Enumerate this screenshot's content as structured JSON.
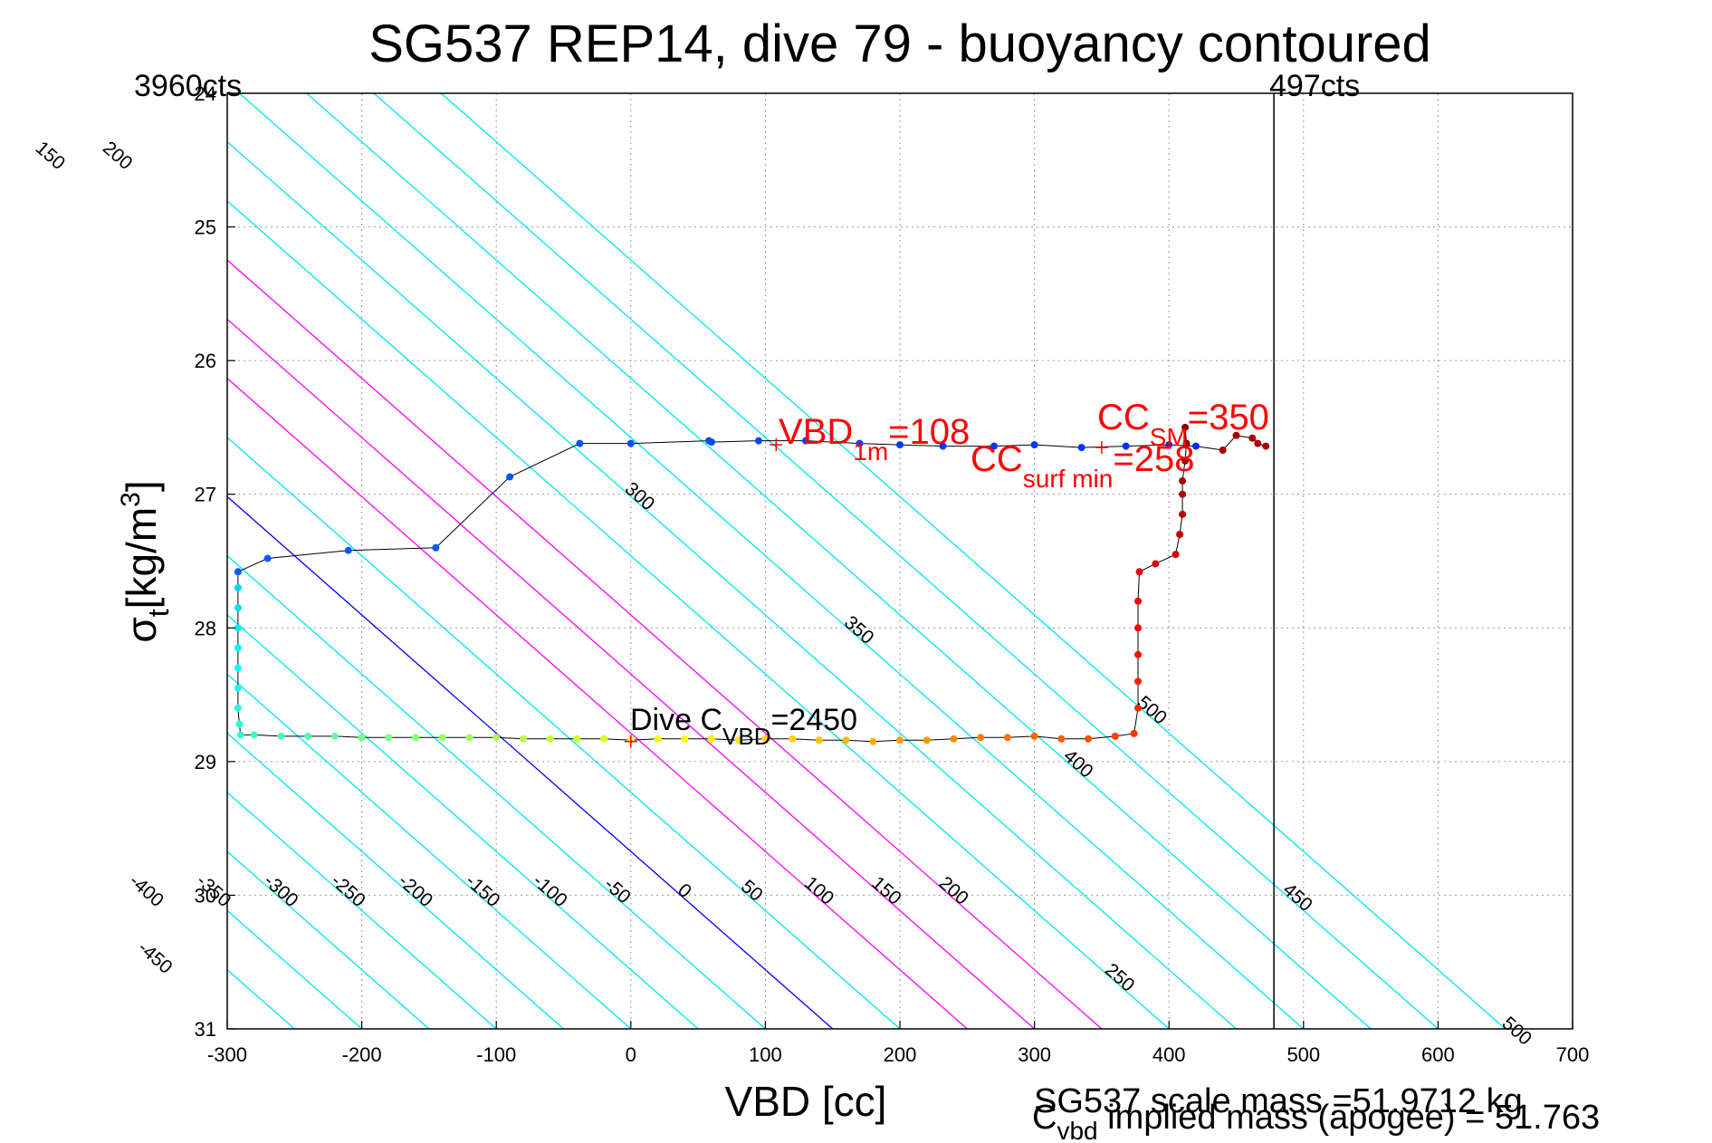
{
  "chart_data": {
    "type": "scatter",
    "title": "SG537 REP14, dive 79 - buoyancy contoured",
    "xlabel": "VBD [cc]",
    "ylabel_main": "σ",
    "ylabel_sub": "t",
    "ylabel_unit_pre": "[kg/m",
    "ylabel_unit_sup": "3",
    "ylabel_unit_post": "]",
    "xlim": [
      -300,
      700
    ],
    "ylim": [
      24,
      31
    ],
    "y_reversed": true,
    "xticks": [
      -300,
      -200,
      -100,
      0,
      100,
      200,
      300,
      400,
      500,
      600,
      700
    ],
    "yticks": [
      24,
      25,
      26,
      27,
      28,
      29,
      30,
      31
    ],
    "grid": true,
    "corner_labels": {
      "left": "3960cts",
      "right": "497cts"
    },
    "vertical_line_x": 478,
    "buoyancy_contours": {
      "slope_cc_per_sigma": 113,
      "zero_line_x_at_sigma31": 150,
      "values": [
        -450,
        -400,
        -350,
        -300,
        -250,
        -200,
        -150,
        -100,
        -50,
        0,
        50,
        100,
        150,
        200,
        250,
        300,
        350,
        400,
        450,
        500
      ],
      "top_labels": [
        "-450",
        "-400",
        "-350",
        "-300",
        "-250",
        "-200",
        "-150",
        "-100",
        "-50",
        "0",
        "50",
        "100",
        "150",
        "200"
      ],
      "right_labels": [
        "300",
        "350",
        "400",
        "450",
        "500"
      ],
      "mid_labels": [
        "500"
      ],
      "bottom_labels": [
        "-450",
        "-400",
        "-350",
        "-300",
        "-250",
        "-200",
        "-150",
        "-100",
        "-50",
        "0",
        "50",
        "100",
        "150",
        "200",
        "250"
      ],
      "colors": {
        "normal": "#00e5ee",
        "zero": "#0000ff",
        "highlight": "#ff00ff"
      },
      "highlight_values": [
        100,
        150,
        200
      ]
    },
    "dive_series": [
      [
        -292,
        27.58
      ],
      [
        -292,
        27.7
      ],
      [
        -292,
        27.85
      ],
      [
        -292,
        28.0
      ],
      [
        -292,
        28.15
      ],
      [
        -292,
        28.3
      ],
      [
        -292,
        28.45
      ],
      [
        -292,
        28.6
      ],
      [
        -291,
        28.72
      ],
      [
        -290,
        28.8
      ],
      [
        -280,
        28.8
      ],
      [
        -260,
        28.81
      ],
      [
        -240,
        28.81
      ],
      [
        -220,
        28.81
      ],
      [
        -200,
        28.82
      ],
      [
        -180,
        28.82
      ],
      [
        -160,
        28.82
      ],
      [
        -140,
        28.82
      ],
      [
        -120,
        28.82
      ],
      [
        -100,
        28.82
      ],
      [
        -80,
        28.83
      ],
      [
        -60,
        28.83
      ],
      [
        -40,
        28.83
      ],
      [
        -20,
        28.83
      ],
      [
        0,
        28.84
      ],
      [
        20,
        28.83
      ],
      [
        40,
        28.83
      ],
      [
        60,
        28.83
      ],
      [
        80,
        28.84
      ],
      [
        100,
        28.83
      ],
      [
        120,
        28.83
      ],
      [
        140,
        28.84
      ],
      [
        160,
        28.84
      ],
      [
        180,
        28.85
      ],
      [
        200,
        28.84
      ],
      [
        220,
        28.84
      ],
      [
        240,
        28.83
      ],
      [
        260,
        28.82
      ],
      [
        280,
        28.82
      ],
      [
        300,
        28.81
      ],
      [
        320,
        28.83
      ],
      [
        340,
        28.83
      ],
      [
        360,
        28.81
      ],
      [
        374,
        28.79
      ],
      [
        377,
        28.6
      ],
      [
        377,
        28.4
      ],
      [
        377,
        28.2
      ],
      [
        377,
        28.0
      ],
      [
        377,
        27.8
      ],
      [
        378,
        27.58
      ],
      [
        390,
        27.52
      ],
      [
        405,
        27.45
      ],
      [
        408,
        27.3
      ],
      [
        410,
        27.15
      ],
      [
        410,
        27.0
      ],
      [
        410,
        26.9
      ],
      [
        412,
        26.75
      ],
      [
        413,
        26.62
      ],
      [
        412,
        26.5
      ]
    ],
    "climb_series": [
      [
        472,
        26.64
      ],
      [
        466,
        26.62
      ],
      [
        462,
        26.58
      ],
      [
        450,
        26.56
      ],
      [
        440,
        26.67
      ],
      [
        420,
        26.64
      ],
      [
        400,
        26.63
      ],
      [
        368,
        26.64
      ],
      [
        335,
        26.65
      ],
      [
        300,
        26.63
      ],
      [
        270,
        26.64
      ],
      [
        232,
        26.64
      ],
      [
        200,
        26.63
      ],
      [
        170,
        26.62
      ],
      [
        130,
        26.6
      ],
      [
        95,
        26.6
      ],
      [
        60,
        26.61
      ],
      [
        58,
        26.6
      ],
      [
        0,
        26.62
      ],
      [
        -38,
        26.62
      ],
      [
        -90,
        26.87
      ],
      [
        -145,
        27.4
      ],
      [
        -210,
        27.42
      ],
      [
        -270,
        27.48
      ],
      [
        -292,
        27.58
      ]
    ],
    "markers": [
      {
        "label": "VBD_1m",
        "x": 108,
        "y": 26.63
      },
      {
        "label": "CC_surf_min",
        "x": 350,
        "y": 26.65
      },
      {
        "label": "Dive_CVBD",
        "x": 0,
        "y": 28.85
      }
    ],
    "annotations": {
      "vbd1m": {
        "main": "VBD",
        "sub": "1m",
        "post": "=108"
      },
      "ccsm": {
        "main": "CC",
        "sub": "SM",
        "post": "=350"
      },
      "ccsurf": {
        "main": "CC",
        "sub": "surf min",
        "post": "=258"
      },
      "dive": {
        "main": "Dive C",
        "sub": "VBD",
        "post": "=2450"
      }
    },
    "footer": {
      "line1": "SG537 scale mass =51.9712 kg",
      "line2_main": "C",
      "line2_sub": "vbd",
      "line2_post": " implied mass (apogee) = 51.763"
    }
  }
}
